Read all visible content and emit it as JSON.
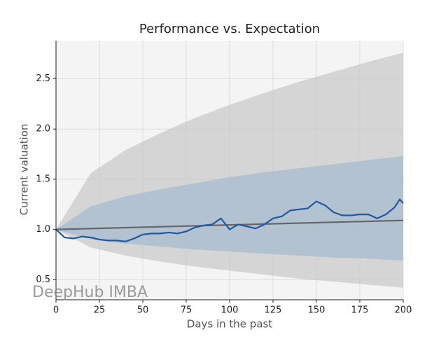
{
  "chart_data": {
    "type": "line",
    "title": "Performance vs. Expectation",
    "x_label": "Days in the past",
    "y_label": "Current valuation",
    "watermark": "DeepHub IMBA",
    "xlim": [
      0,
      200
    ],
    "ylim": [
      0.3,
      2.88
    ],
    "xticks": [
      0,
      25,
      50,
      75,
      100,
      125,
      150,
      175,
      200
    ],
    "yticks": [
      0.5,
      {
        "value": 1,
        "label": "1.0"
      },
      1.5,
      {
        "value": 2,
        "label": "2.0"
      },
      2.5
    ],
    "grid": true,
    "bands": [
      {
        "color": "#c4c4c4",
        "x": [
          0,
          20,
          40,
          60,
          80,
          100,
          120,
          140,
          160,
          180,
          200
        ],
        "upper": [
          1,
          1.56,
          1.79,
          1.96,
          2.11,
          2.24,
          2.36,
          2.47,
          2.57,
          2.67,
          2.76
        ],
        "lower": [
          1,
          0.82,
          0.74,
          0.68,
          0.63,
          0.59,
          0.55,
          0.51,
          0.48,
          0.45,
          0.42
        ]
      },
      {
        "color": "#9fb9d0",
        "x": [
          0,
          20,
          40,
          60,
          80,
          100,
          120,
          140,
          160,
          180,
          200
        ],
        "upper": [
          1,
          1.23,
          1.33,
          1.4,
          1.46,
          1.52,
          1.57,
          1.61,
          1.65,
          1.69,
          1.73
        ],
        "lower": [
          1,
          0.9,
          0.86,
          0.83,
          0.8,
          0.78,
          0.76,
          0.74,
          0.72,
          0.71,
          0.69
        ]
      }
    ],
    "series": [
      {
        "color": "#666666",
        "x": [
          0,
          200
        ],
        "values": [
          1.0,
          1.09
        ]
      },
      {
        "color": "#1f5aa0",
        "x": [
          0,
          5,
          10,
          15,
          20,
          25,
          30,
          35,
          40,
          45,
          50,
          55,
          60,
          65,
          70,
          75,
          80,
          85,
          90,
          95,
          100,
          105,
          110,
          115,
          120,
          125,
          130,
          135,
          140,
          145,
          150,
          155,
          160,
          165,
          170,
          175,
          180,
          185,
          190,
          195,
          198,
          200
        ],
        "values": [
          1.0,
          0.92,
          0.91,
          0.93,
          0.92,
          0.9,
          0.89,
          0.89,
          0.88,
          0.91,
          0.95,
          0.96,
          0.96,
          0.97,
          0.96,
          0.98,
          1.02,
          1.04,
          1.05,
          1.11,
          1.0,
          1.05,
          1.03,
          1.01,
          1.05,
          1.11,
          1.13,
          1.19,
          1.2,
          1.21,
          1.28,
          1.24,
          1.17,
          1.14,
          1.14,
          1.15,
          1.15,
          1.11,
          1.15,
          1.22,
          1.3,
          1.26
        ]
      }
    ]
  }
}
